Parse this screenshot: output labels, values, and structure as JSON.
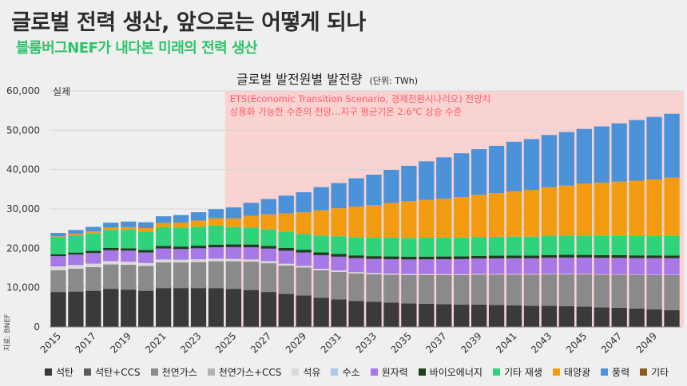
{
  "title": "글로벌 전력 생산, 앞으로는 어떻게 되나",
  "subtitle": "블룸버그NEF가 내다본 미래의 전력 생산",
  "source": "자료: BNEF",
  "chart_data": {
    "type": "bar",
    "stacked": true,
    "title": "글로벌 발전원별 발전량",
    "unit_label": "(단위: TWh)",
    "ylim": [
      0,
      60000
    ],
    "yticks": [
      0,
      10000,
      20000,
      30000,
      40000,
      50000,
      60000
    ],
    "ytick_labels": [
      "0",
      "10,000",
      "20,000",
      "30,000",
      "40,000",
      "50,000",
      "60,000"
    ],
    "grid": true,
    "actual_label": "실제",
    "scenario": {
      "from_year": 2025,
      "color": "#f9d2d2",
      "text_color": "#ff5b66",
      "line1": "ETS(Economic Transition Scenario, 경제전환시나리오) 전망치",
      "line2": "상용화 가능한 수준의 전망…지구 평균기온 2.6℃ 상승 수준"
    },
    "categories": [
      2015,
      2016,
      2017,
      2018,
      2019,
      2020,
      2021,
      2022,
      2023,
      2024,
      2025,
      2026,
      2027,
      2028,
      2029,
      2030,
      2031,
      2032,
      2033,
      2034,
      2035,
      2036,
      2037,
      2038,
      2039,
      2040,
      2041,
      2042,
      2043,
      2044,
      2045,
      2046,
      2047,
      2048,
      2049,
      2050
    ],
    "xtick_labels": [
      "2015",
      "2017",
      "2019",
      "2021",
      "2023",
      "2025",
      "2027",
      "2029",
      "2031",
      "2033",
      "2035",
      "2037",
      "2039",
      "2041",
      "2043",
      "2045",
      "2047",
      "2049"
    ],
    "series": [
      {
        "name": "석탄",
        "color": "#3a3a3a",
        "values": [
          8900,
          9000,
          9200,
          9700,
          9500,
          9200,
          9900,
          9900,
          9900,
          9900,
          9700,
          9400,
          8900,
          8400,
          8000,
          7400,
          7000,
          6600,
          6400,
          6200,
          6000,
          5900,
          5800,
          5700,
          5700,
          5600,
          5500,
          5400,
          5400,
          5300,
          5200,
          5000,
          4900,
          4700,
          4500,
          4300
        ]
      },
      {
        "name": "석탄+CCS",
        "color": "#5b5b5b",
        "values": [
          0,
          0,
          0,
          0,
          0,
          0,
          0,
          0,
          0,
          0,
          0,
          0,
          0,
          0,
          0,
          0,
          0,
          0,
          0,
          0,
          0,
          0,
          0,
          0,
          0,
          0,
          0,
          0,
          0,
          0,
          0,
          0,
          0,
          0,
          0,
          0
        ]
      },
      {
        "name": "천연가스",
        "color": "#8a8a8a",
        "values": [
          5500,
          5800,
          6000,
          6200,
          6300,
          6300,
          6500,
          6500,
          6600,
          6800,
          7000,
          7200,
          7300,
          7200,
          7100,
          7000,
          7000,
          7000,
          7000,
          7100,
          7200,
          7300,
          7400,
          7500,
          7600,
          7700,
          7800,
          7900,
          8000,
          8100,
          8200,
          8300,
          8400,
          8500,
          8700,
          8900
        ]
      },
      {
        "name": "천연가스+CCS",
        "color": "#b3b3b3",
        "values": [
          0,
          0,
          0,
          0,
          0,
          0,
          0,
          0,
          0,
          0,
          0,
          0,
          0,
          0,
          0,
          0,
          0,
          0,
          0,
          0,
          0,
          0,
          0,
          0,
          0,
          0,
          0,
          0,
          0,
          0,
          0,
          0,
          0,
          0,
          0,
          0
        ]
      },
      {
        "name": "석유",
        "color": "#d9d9d9",
        "values": [
          1000,
          950,
          900,
          850,
          800,
          750,
          750,
          700,
          700,
          650,
          600,
          560,
          520,
          480,
          440,
          400,
          370,
          340,
          310,
          280,
          260,
          240,
          220,
          200,
          190,
          180,
          170,
          160,
          150,
          140,
          130,
          120,
          110,
          100,
          90,
          80
        ]
      },
      {
        "name": "수소",
        "color": "#a9cbe6",
        "values": [
          0,
          0,
          0,
          0,
          0,
          0,
          0,
          0,
          0,
          0,
          0,
          0,
          0,
          0,
          0,
          0,
          0,
          0,
          0,
          0,
          0,
          0,
          0,
          0,
          0,
          0,
          0,
          0,
          0,
          0,
          0,
          0,
          0,
          0,
          0,
          0
        ]
      },
      {
        "name": "원자력",
        "color": "#a679e6",
        "values": [
          2600,
          2650,
          2700,
          2750,
          2800,
          2700,
          2800,
          2700,
          2800,
          2900,
          3000,
          3100,
          3200,
          3300,
          3400,
          3450,
          3500,
          3550,
          3600,
          3650,
          3700,
          3750,
          3800,
          3850,
          3900,
          3950,
          4000,
          4000,
          4050,
          4100,
          4100,
          4150,
          4150,
          4200,
          4200,
          4200
        ]
      },
      {
        "name": "바이오에너지",
        "color": "#1e3f1e",
        "values": [
          500,
          520,
          550,
          570,
          600,
          620,
          640,
          650,
          670,
          690,
          700,
          700,
          700,
          700,
          700,
          700,
          700,
          700,
          700,
          700,
          700,
          700,
          700,
          700,
          700,
          700,
          700,
          700,
          700,
          700,
          700,
          700,
          700,
          700,
          700,
          700
        ]
      },
      {
        "name": "기타 재생",
        "color": "#2fd37c",
        "values": [
          4300,
          4400,
          4500,
          4600,
          4700,
          4700,
          4800,
          4800,
          4800,
          4800,
          4400,
          4300,
          4200,
          4100,
          4000,
          4300,
          4500,
          4600,
          4700,
          4800,
          4800,
          4800,
          4800,
          4800,
          4800,
          4800,
          4800,
          4800,
          4900,
          4900,
          4900,
          4900,
          4900,
          4900,
          4900,
          5000
        ]
      },
      {
        "name": "태양광",
        "color": "#f39c12",
        "values": [
          250,
          330,
          450,
          600,
          700,
          850,
          1050,
          1300,
          1600,
          1900,
          2200,
          3000,
          3800,
          4700,
          5500,
          6400,
          7100,
          7800,
          8300,
          8800,
          9300,
          9600,
          9900,
          10300,
          10700,
          11100,
          11500,
          11900,
          12300,
          12700,
          13200,
          13500,
          13800,
          14100,
          14400,
          14800
        ]
      },
      {
        "name": "풍력",
        "color": "#4c92d9",
        "values": [
          850,
          1000,
          1150,
          1250,
          1400,
          1500,
          1700,
          1900,
          2100,
          2300,
          2800,
          3300,
          3900,
          4500,
          5100,
          5900,
          6400,
          7200,
          7700,
          8400,
          9000,
          9800,
          10500,
          11100,
          11600,
          12000,
          12600,
          12900,
          13300,
          13600,
          13900,
          14300,
          14800,
          15400,
          15900,
          16200
        ]
      },
      {
        "name": "기타",
        "color": "#8c5a1f",
        "values": [
          0,
          0,
          0,
          0,
          0,
          0,
          0,
          0,
          0,
          0,
          0,
          0,
          0,
          0,
          0,
          0,
          0,
          0,
          0,
          0,
          0,
          0,
          0,
          0,
          0,
          0,
          0,
          0,
          0,
          0,
          0,
          0,
          0,
          0,
          0,
          0
        ]
      }
    ]
  }
}
